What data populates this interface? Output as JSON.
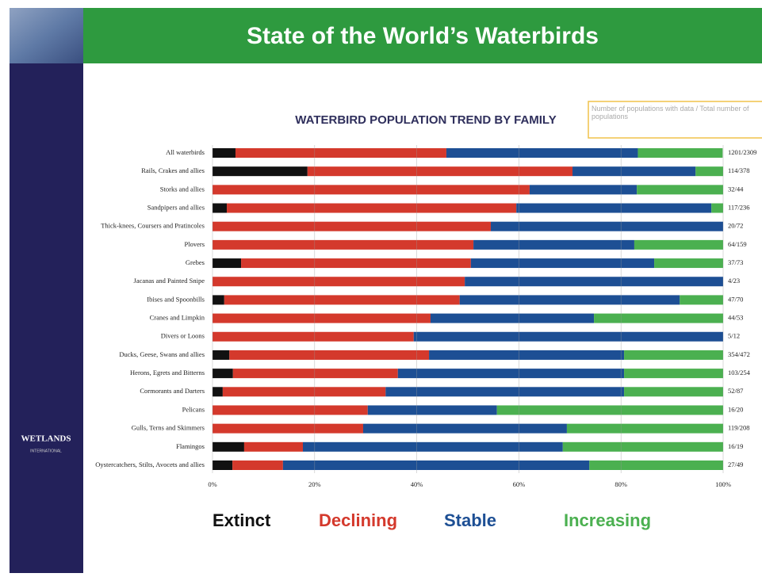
{
  "header": {
    "title": "State of the World’s Waterbirds"
  },
  "logo": {
    "name": "WETLANDS",
    "sub": "INTERNATIONAL"
  },
  "chart_data": {
    "type": "bar",
    "orientation": "horizontal",
    "stacked": true,
    "title": "WATERBIRD POPULATION TREND BY FAMILY",
    "note": "Number of populations with data / Total number of populations",
    "categories": [
      "All waterbirds",
      "Rails, Crakes and allies",
      "Storks and allies",
      "Sandpipers and allies",
      "Thick-knees, Coursers and Pratincoles",
      "Plovers",
      "Grebes",
      "Jacanas and Painted Snipe",
      "Ibises and Spoonbills",
      "Cranes and Limpkin",
      "Divers or Loons",
      "Ducks, Geese, Swans and allies",
      "Herons, Egrets and Bitterns",
      "Cormorants and Darters",
      "Pelicans",
      "Gulls, Terns and Skimmers",
      "Flamingos",
      "Oystercatchers, Stilts, Avocets and allies"
    ],
    "ratios": [
      "1201/2309",
      "114/378",
      "32/44",
      "117/236",
      "20/72",
      "64/159",
      "37/73",
      "4/23",
      "47/70",
      "44/53",
      "5/12",
      "354/472",
      "103/254",
      "52/87",
      "16/20",
      "119/208",
      "16/19",
      "27/49"
    ],
    "series": [
      {
        "name": "Extinct",
        "color": "#111111",
        "values": [
          4.5,
          18.6,
          0,
          2.8,
          0,
          0,
          5.6,
          0,
          2.3,
          0,
          0,
          3.3,
          4,
          2,
          0,
          0,
          6.2,
          3.9
        ]
      },
      {
        "name": "Declining",
        "color": "#d4392c",
        "values": [
          41.3,
          51.9,
          62.1,
          56.7,
          54.5,
          51.1,
          45,
          49.4,
          46.1,
          42.7,
          39.4,
          39.1,
          32.3,
          31.9,
          30.4,
          29.5,
          11.5,
          9.9
        ]
      },
      {
        "name": "Stable",
        "color": "#1d4f94",
        "values": [
          37.5,
          24.1,
          21,
          38.2,
          45.5,
          31.5,
          35.9,
          50.6,
          43.1,
          32,
          60.6,
          38.2,
          44.3,
          46.7,
          25.3,
          39.9,
          50.9,
          60
        ]
      },
      {
        "name": "Increasing",
        "color": "#4bb050",
        "values": [
          16.6,
          5.4,
          16.9,
          2.3,
          0,
          17.4,
          13.5,
          0,
          8.5,
          25.3,
          0,
          19.4,
          19.4,
          19.4,
          44.3,
          30.6,
          31.4,
          26.2
        ]
      }
    ],
    "xlim": [
      0,
      100
    ],
    "xticks": [
      {
        "value": 0,
        "label": "0%"
      },
      {
        "value": 20,
        "label": "20%"
      },
      {
        "value": 40,
        "label": "40%"
      },
      {
        "value": 60,
        "label": "60%"
      },
      {
        "value": 80,
        "label": "80%"
      },
      {
        "value": 100,
        "label": "100%"
      }
    ],
    "grid": true
  }
}
